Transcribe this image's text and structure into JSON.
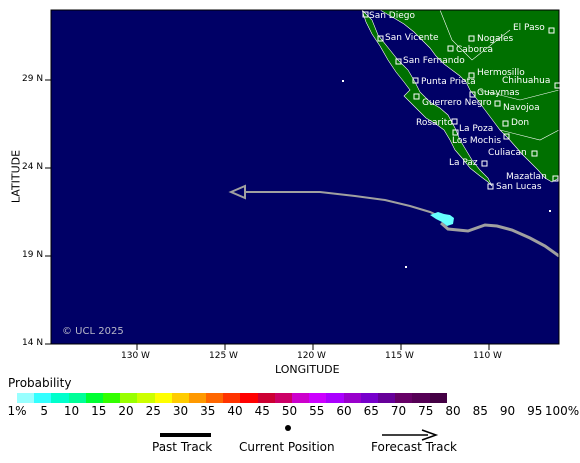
{
  "map": {
    "colors": {
      "ocean": "#000066",
      "land": "#007000",
      "border": "#ffffff",
      "track": "#a0a0a0",
      "cyan_blob": "#66ffff"
    },
    "y_axis": {
      "title": "LATITUDE",
      "ticks": [
        "29 N",
        "24 N",
        "19 N",
        "14 N"
      ]
    },
    "x_axis": {
      "title": "LONGITUDE",
      "ticks": [
        "130 W",
        "125 W",
        "120 W",
        "115 W",
        "110 W"
      ]
    },
    "copyright": "© UCL 2025",
    "cities": [
      "San Diego",
      "El Paso",
      "San Vicente",
      "Nogales",
      "Caborca",
      "San Fernando",
      "Hermosillo",
      "Chihuahua",
      "Punta Prieta",
      "Guaymas",
      "Guerrero Negro",
      "Navojoa",
      "Rosarito",
      "La Poza",
      "Don",
      "Los Mochis",
      "Culiacan",
      "La Paz",
      "Mazatlan",
      "San Lucas"
    ]
  },
  "legend": {
    "title": "Probability",
    "colors": [
      "#99ffff",
      "#33ffff",
      "#00ffcc",
      "#00ff99",
      "#00ff33",
      "#33ff00",
      "#99ff00",
      "#ccff00",
      "#ffff00",
      "#ffcc00",
      "#ff9900",
      "#ff6600",
      "#ff3300",
      "#ff0000",
      "#cc0033",
      "#cc0066",
      "#cc00cc",
      "#cc00ff",
      "#aa00ff",
      "#9900cc",
      "#7700cc",
      "#660099",
      "#660066",
      "#550055",
      "#440044"
    ],
    "tick_labels": [
      "1%",
      "5",
      "10",
      "15",
      "20",
      "25",
      "30",
      "35",
      "40",
      "45",
      "50",
      "55",
      "60",
      "65",
      "70",
      "75",
      "80",
      "85",
      "90",
      "95",
      "100%"
    ],
    "past_track": "Past Track",
    "current_position": "Current Position",
    "forecast_track": "Forecast Track"
  }
}
